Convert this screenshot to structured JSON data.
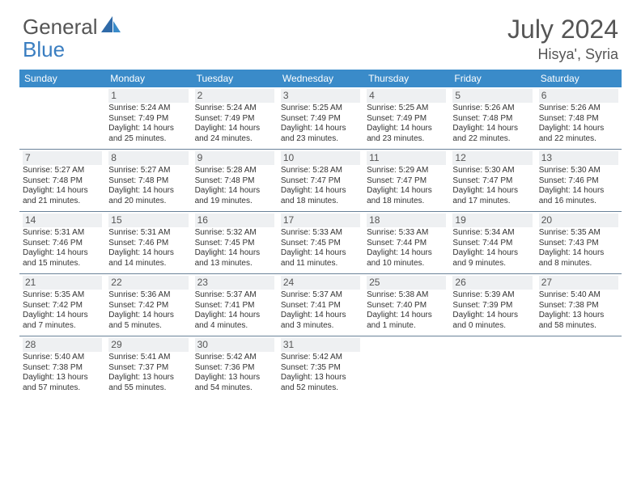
{
  "logo": {
    "text1": "General",
    "text2": "Blue"
  },
  "title": "July 2024",
  "location": "Hisya', Syria",
  "colors": {
    "header_bg": "#3a8bc9",
    "daynum_bg": "#eef0f2",
    "border": "#6a8299"
  },
  "weekdays": [
    "Sunday",
    "Monday",
    "Tuesday",
    "Wednesday",
    "Thursday",
    "Friday",
    "Saturday"
  ],
  "weeks": [
    [
      null,
      {
        "n": "1",
        "sr": "Sunrise: 5:24 AM",
        "ss": "Sunset: 7:49 PM",
        "dl": "Daylight: 14 hours and 25 minutes."
      },
      {
        "n": "2",
        "sr": "Sunrise: 5:24 AM",
        "ss": "Sunset: 7:49 PM",
        "dl": "Daylight: 14 hours and 24 minutes."
      },
      {
        "n": "3",
        "sr": "Sunrise: 5:25 AM",
        "ss": "Sunset: 7:49 PM",
        "dl": "Daylight: 14 hours and 23 minutes."
      },
      {
        "n": "4",
        "sr": "Sunrise: 5:25 AM",
        "ss": "Sunset: 7:49 PM",
        "dl": "Daylight: 14 hours and 23 minutes."
      },
      {
        "n": "5",
        "sr": "Sunrise: 5:26 AM",
        "ss": "Sunset: 7:48 PM",
        "dl": "Daylight: 14 hours and 22 minutes."
      },
      {
        "n": "6",
        "sr": "Sunrise: 5:26 AM",
        "ss": "Sunset: 7:48 PM",
        "dl": "Daylight: 14 hours and 22 minutes."
      }
    ],
    [
      {
        "n": "7",
        "sr": "Sunrise: 5:27 AM",
        "ss": "Sunset: 7:48 PM",
        "dl": "Daylight: 14 hours and 21 minutes."
      },
      {
        "n": "8",
        "sr": "Sunrise: 5:27 AM",
        "ss": "Sunset: 7:48 PM",
        "dl": "Daylight: 14 hours and 20 minutes."
      },
      {
        "n": "9",
        "sr": "Sunrise: 5:28 AM",
        "ss": "Sunset: 7:48 PM",
        "dl": "Daylight: 14 hours and 19 minutes."
      },
      {
        "n": "10",
        "sr": "Sunrise: 5:28 AM",
        "ss": "Sunset: 7:47 PM",
        "dl": "Daylight: 14 hours and 18 minutes."
      },
      {
        "n": "11",
        "sr": "Sunrise: 5:29 AM",
        "ss": "Sunset: 7:47 PM",
        "dl": "Daylight: 14 hours and 18 minutes."
      },
      {
        "n": "12",
        "sr": "Sunrise: 5:30 AM",
        "ss": "Sunset: 7:47 PM",
        "dl": "Daylight: 14 hours and 17 minutes."
      },
      {
        "n": "13",
        "sr": "Sunrise: 5:30 AM",
        "ss": "Sunset: 7:46 PM",
        "dl": "Daylight: 14 hours and 16 minutes."
      }
    ],
    [
      {
        "n": "14",
        "sr": "Sunrise: 5:31 AM",
        "ss": "Sunset: 7:46 PM",
        "dl": "Daylight: 14 hours and 15 minutes."
      },
      {
        "n": "15",
        "sr": "Sunrise: 5:31 AM",
        "ss": "Sunset: 7:46 PM",
        "dl": "Daylight: 14 hours and 14 minutes."
      },
      {
        "n": "16",
        "sr": "Sunrise: 5:32 AM",
        "ss": "Sunset: 7:45 PM",
        "dl": "Daylight: 14 hours and 13 minutes."
      },
      {
        "n": "17",
        "sr": "Sunrise: 5:33 AM",
        "ss": "Sunset: 7:45 PM",
        "dl": "Daylight: 14 hours and 11 minutes."
      },
      {
        "n": "18",
        "sr": "Sunrise: 5:33 AM",
        "ss": "Sunset: 7:44 PM",
        "dl": "Daylight: 14 hours and 10 minutes."
      },
      {
        "n": "19",
        "sr": "Sunrise: 5:34 AM",
        "ss": "Sunset: 7:44 PM",
        "dl": "Daylight: 14 hours and 9 minutes."
      },
      {
        "n": "20",
        "sr": "Sunrise: 5:35 AM",
        "ss": "Sunset: 7:43 PM",
        "dl": "Daylight: 14 hours and 8 minutes."
      }
    ],
    [
      {
        "n": "21",
        "sr": "Sunrise: 5:35 AM",
        "ss": "Sunset: 7:42 PM",
        "dl": "Daylight: 14 hours and 7 minutes."
      },
      {
        "n": "22",
        "sr": "Sunrise: 5:36 AM",
        "ss": "Sunset: 7:42 PM",
        "dl": "Daylight: 14 hours and 5 minutes."
      },
      {
        "n": "23",
        "sr": "Sunrise: 5:37 AM",
        "ss": "Sunset: 7:41 PM",
        "dl": "Daylight: 14 hours and 4 minutes."
      },
      {
        "n": "24",
        "sr": "Sunrise: 5:37 AM",
        "ss": "Sunset: 7:41 PM",
        "dl": "Daylight: 14 hours and 3 minutes."
      },
      {
        "n": "25",
        "sr": "Sunrise: 5:38 AM",
        "ss": "Sunset: 7:40 PM",
        "dl": "Daylight: 14 hours and 1 minute."
      },
      {
        "n": "26",
        "sr": "Sunrise: 5:39 AM",
        "ss": "Sunset: 7:39 PM",
        "dl": "Daylight: 14 hours and 0 minutes."
      },
      {
        "n": "27",
        "sr": "Sunrise: 5:40 AM",
        "ss": "Sunset: 7:38 PM",
        "dl": "Daylight: 13 hours and 58 minutes."
      }
    ],
    [
      {
        "n": "28",
        "sr": "Sunrise: 5:40 AM",
        "ss": "Sunset: 7:38 PM",
        "dl": "Daylight: 13 hours and 57 minutes."
      },
      {
        "n": "29",
        "sr": "Sunrise: 5:41 AM",
        "ss": "Sunset: 7:37 PM",
        "dl": "Daylight: 13 hours and 55 minutes."
      },
      {
        "n": "30",
        "sr": "Sunrise: 5:42 AM",
        "ss": "Sunset: 7:36 PM",
        "dl": "Daylight: 13 hours and 54 minutes."
      },
      {
        "n": "31",
        "sr": "Sunrise: 5:42 AM",
        "ss": "Sunset: 7:35 PM",
        "dl": "Daylight: 13 hours and 52 minutes."
      },
      null,
      null,
      null
    ]
  ]
}
